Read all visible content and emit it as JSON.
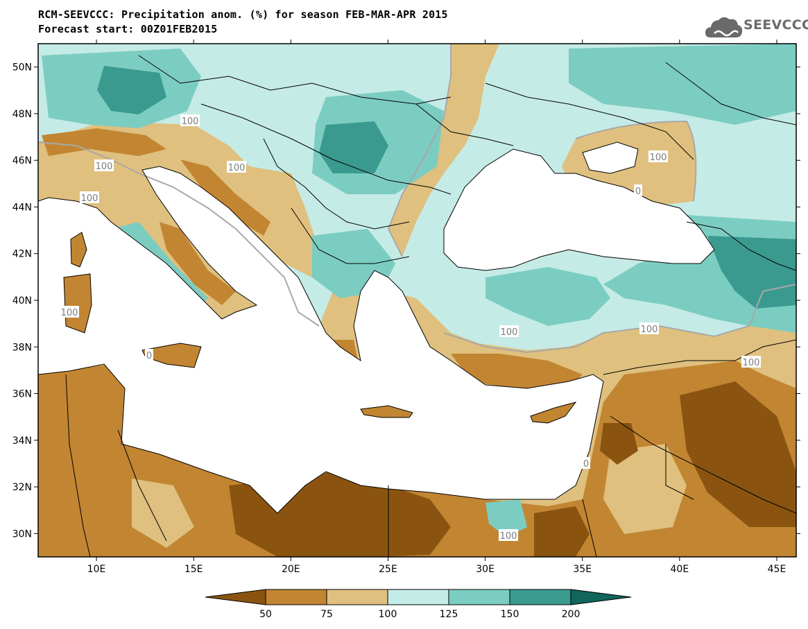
{
  "title": {
    "line1": "RCM-SEEVCCC: Precipitation anom. (%) for season FEB-MAR-APR 2015",
    "line2": "Forecast start: 00Z01FEB2015"
  },
  "logo": {
    "text": "SEEVCCC",
    "icon": "cloud-icon"
  },
  "map": {
    "lon_range": [
      7,
      46
    ],
    "lat_range": [
      29,
      51
    ],
    "lat_ticks": [
      "50N",
      "48N",
      "46N",
      "44N",
      "42N",
      "40N",
      "38N",
      "36N",
      "34N",
      "32N",
      "30N"
    ],
    "lon_ticks": [
      "10E",
      "15E",
      "20E",
      "25E",
      "30E",
      "35E",
      "40E",
      "45E"
    ],
    "contour_labels": [
      "100",
      "100",
      "100",
      "100",
      "100",
      "100",
      "100",
      "100",
      "100",
      "100",
      "0",
      "0",
      "0"
    ]
  },
  "colorbar": {
    "labels": [
      "50",
      "75",
      "100",
      "125",
      "150",
      "200"
    ],
    "colors": {
      "below_50": "#8a5410",
      "50_75": "#c28532",
      "75_100": "#dfc07e",
      "100_125": "#c5ebe6",
      "125_150": "#7ccdc1",
      "150_200": "#3a9a8f",
      "above_200": "#11655c"
    }
  },
  "colors": {
    "sea": "#ffffff",
    "border": "#000000",
    "contour": "#a8a8a8"
  }
}
